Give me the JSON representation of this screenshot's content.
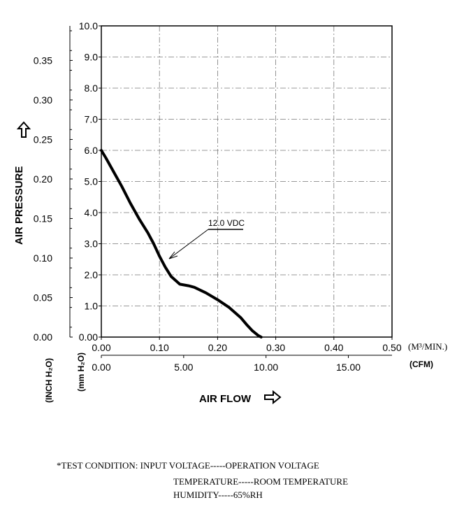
{
  "chart_data": {
    "type": "line",
    "x_primary": {
      "unit": "(M³/MIN.)",
      "ticks": [
        "0.00",
        "0.10",
        "0.20",
        "0.30",
        "0.40",
        "0.50"
      ],
      "range": [
        0,
        0.5
      ]
    },
    "x_secondary": {
      "unit": "(CFM)",
      "ticks": [
        "0.00",
        "5.00",
        "10.00",
        "15.00"
      ],
      "range": [
        0,
        17.65
      ]
    },
    "y_primary": {
      "unit": "(mm H₂O)",
      "ticks": [
        "0.00",
        "1.0",
        "2.0",
        "3.0",
        "4.0",
        "5.0",
        "6.0",
        "7.0",
        "8.0",
        "9.0",
        "10.0"
      ],
      "range": [
        0,
        10
      ]
    },
    "y_secondary": {
      "unit": "(INCH H₂O)",
      "ticks": [
        "0.00",
        "0.05",
        "0.10",
        "0.15",
        "0.20",
        "0.25",
        "0.30",
        "0.35"
      ],
      "range": [
        0,
        0.3937
      ]
    },
    "xlabel": "AIR FLOW",
    "ylabel": "AIR PRESSURE",
    "grid": true,
    "series": [
      {
        "name": "12.0 VDC",
        "x": [
          0.0,
          0.008,
          0.02,
          0.035,
          0.05,
          0.065,
          0.08,
          0.09,
          0.1,
          0.11,
          0.12,
          0.135,
          0.15,
          0.16,
          0.18,
          0.2,
          0.22,
          0.24,
          0.25,
          0.26,
          0.27,
          0.275
        ],
        "y": [
          6.0,
          5.75,
          5.35,
          4.85,
          4.3,
          3.8,
          3.35,
          3.0,
          2.6,
          2.25,
          1.95,
          1.7,
          1.65,
          1.6,
          1.42,
          1.2,
          0.95,
          0.62,
          0.4,
          0.2,
          0.05,
          0.0
        ]
      }
    ],
    "annotation": {
      "text": "12.0 VDC",
      "points_to": [
        0.115,
        2.5
      ]
    }
  },
  "test_condition": {
    "line1": "*TEST CONDITION: INPUT VOLTAGE-----OPERATION VOLTAGE",
    "line2": "TEMPERATURE-----ROOM TEMPERATURE",
    "line3": "HUMIDITY-----65%RH"
  }
}
